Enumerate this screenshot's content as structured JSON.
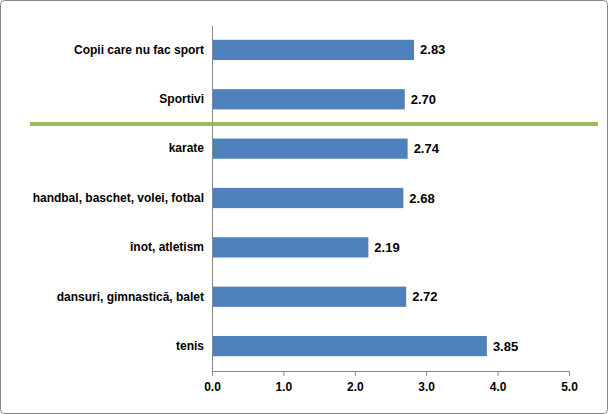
{
  "chart_data": {
    "type": "bar",
    "orientation": "horizontal",
    "categories": [
      "Copii care nu fac sport",
      "Sportivi",
      "karate",
      "handbal, baschet, volei, fotbal",
      "înot, atletism",
      "dansuri, gimnastică, balet",
      "tenis"
    ],
    "values": [
      2.83,
      2.7,
      2.74,
      2.68,
      2.19,
      2.72,
      3.85
    ],
    "value_labels": [
      "2.83",
      "2.70",
      "2.74",
      "2.68",
      "2.19",
      "2.72",
      "3.85"
    ],
    "color": "#4f81bd",
    "xlim": [
      0,
      5
    ],
    "xticks": [
      {
        "value": 0,
        "label": "0.0"
      },
      {
        "value": 1,
        "label": "1.0"
      },
      {
        "value": 2,
        "label": "2.0"
      },
      {
        "value": 3,
        "label": "3.0"
      },
      {
        "value": 4,
        "label": "4.0"
      },
      {
        "value": 5,
        "label": "5.0"
      }
    ],
    "data_labels": true,
    "grid": false
  }
}
